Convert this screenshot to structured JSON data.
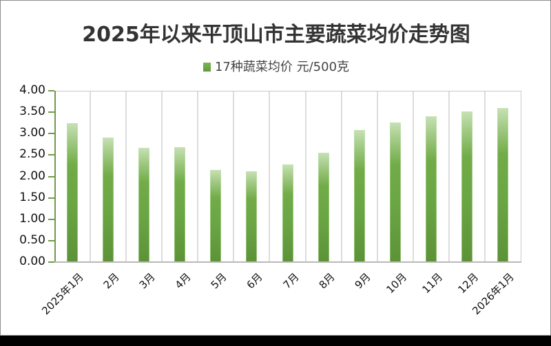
{
  "chart_data": {
    "type": "bar",
    "title": "2025年以来平顶山市主要蔬菜均价走势图",
    "legend": [
      "17种蔬菜均价 元/500克"
    ],
    "legend_position": "top",
    "xlabel": "",
    "ylabel": "",
    "ylim": [
      0,
      4
    ],
    "yticks": [
      "0.00",
      "0.50",
      "1.00",
      "1.50",
      "2.00",
      "2.50",
      "3.00",
      "3.50",
      "4.00"
    ],
    "grid": "vertical",
    "categories": [
      "2025年1月",
      "2月",
      "3月",
      "4月",
      "5月",
      "6月",
      "7月",
      "8月",
      "9月",
      "10月",
      "11月",
      "12月",
      "2026年1月"
    ],
    "series": [
      {
        "name": "17种蔬菜均价 元/500克",
        "color": "#6aa544",
        "values": [
          3.26,
          2.92,
          2.68,
          2.7,
          2.17,
          2.14,
          2.3,
          2.57,
          3.1,
          3.28,
          3.42,
          3.53,
          3.61
        ]
      }
    ]
  },
  "colors": {
    "bar": "#6aa544",
    "bar_top": "#c7e1b4",
    "axis": "#6d9b4a",
    "grid": "#dcdcdc"
  }
}
